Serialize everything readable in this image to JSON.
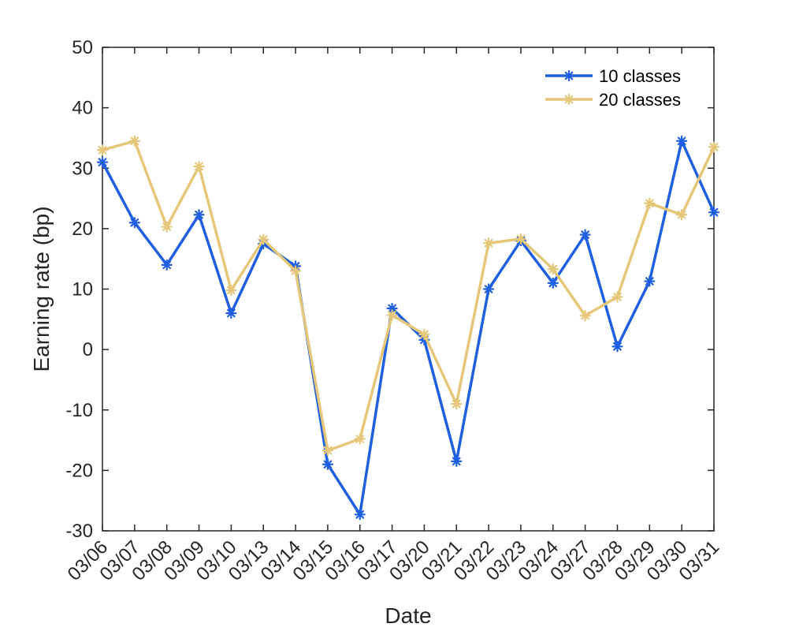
{
  "chart_data": {
    "type": "line",
    "title": "",
    "xlabel": "Date",
    "ylabel": "Earning rate (bp)",
    "categories": [
      "03/06",
      "03/07",
      "03/08",
      "03/09",
      "03/10",
      "03/13",
      "03/14",
      "03/15",
      "03/16",
      "03/17",
      "03/20",
      "03/21",
      "03/22",
      "03/23",
      "03/24",
      "03/27",
      "03/28",
      "03/29",
      "03/30",
      "03/31"
    ],
    "ylim": [
      -30,
      50
    ],
    "yticks": [
      -30,
      -20,
      -10,
      0,
      10,
      20,
      30,
      40,
      50
    ],
    "grid": false,
    "legend_position": "top-right",
    "series": [
      {
        "name": "10 classes",
        "color": "#1f5fe0",
        "marker": "asterisk",
        "values": [
          31,
          21,
          14,
          22.3,
          6,
          17.5,
          13.8,
          -19,
          -27.3,
          6.8,
          1.6,
          -18.5,
          10,
          18,
          11,
          19,
          0.5,
          11.3,
          34.5,
          22.7
        ]
      },
      {
        "name": "20 classes",
        "color": "#e5c77a",
        "marker": "asterisk",
        "values": [
          33,
          34.5,
          20.3,
          30.3,
          9.8,
          18.2,
          13,
          -16.7,
          -14.8,
          5.7,
          2.5,
          -9,
          17.6,
          18.3,
          13.3,
          5.6,
          8.7,
          24.2,
          22.3,
          33.5
        ]
      }
    ]
  }
}
